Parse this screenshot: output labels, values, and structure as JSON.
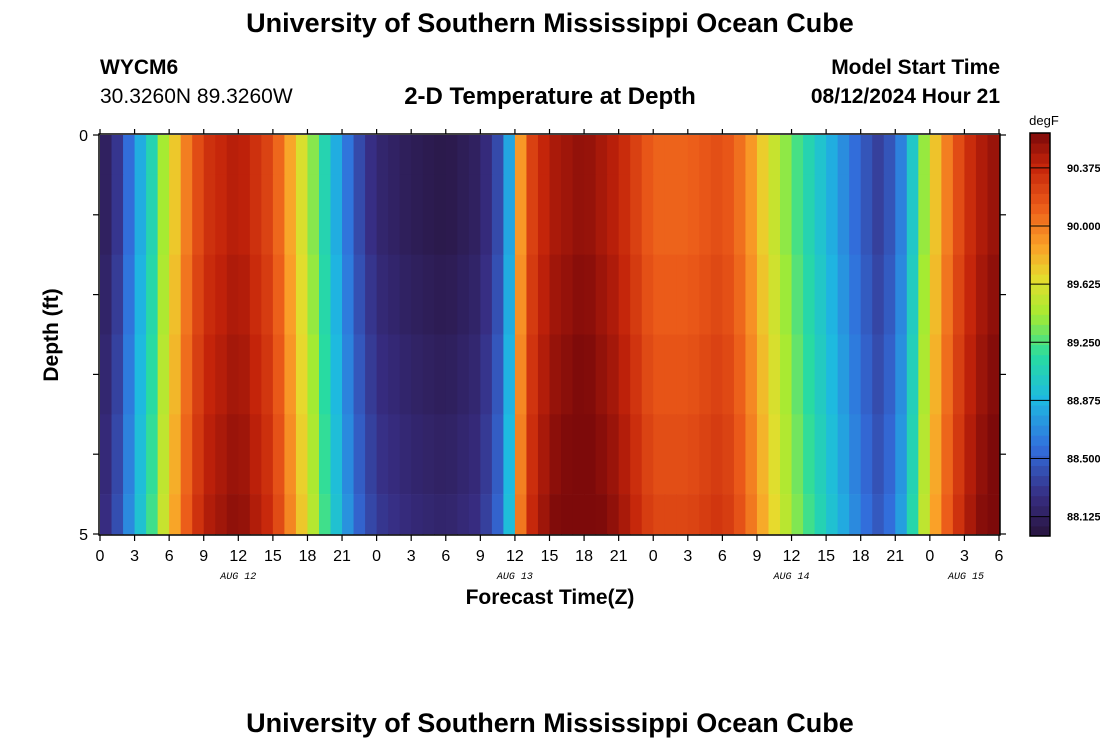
{
  "page": {
    "title": "University of Southern Mississippi Ocean Cube",
    "station_id": "WYCM6",
    "coordinates": "30.3260N  89.3260W",
    "subtitle": "2-D Temperature at Depth",
    "model_start_label": "Model Start Time",
    "model_start_value": "08/12/2024 Hour 21",
    "bottom_title": "University of Southern Mississippi Ocean Cube"
  },
  "chart_data": {
    "type": "heatmap",
    "xlabel": "Forecast Time(Z)",
    "ylabel": "Depth (ft)",
    "colorbar_unit": "degF",
    "x_tick_labels": [
      "0",
      "3",
      "6",
      "9",
      "12",
      "15",
      "18",
      "21",
      "0",
      "3",
      "6",
      "9",
      "12",
      "15",
      "18",
      "21",
      "0",
      "3",
      "6",
      "9",
      "12",
      "15",
      "18",
      "21",
      "0",
      "3",
      "6"
    ],
    "x_day_labels": [
      {
        "label": "AUG 12",
        "hour": 12
      },
      {
        "label": "AUG 13",
        "hour": 36
      },
      {
        "label": "AUG 14",
        "hour": 60
      },
      {
        "label": "AUG 15",
        "hour": 81
      }
    ],
    "x_range_hours": [
      0,
      78
    ],
    "y_tick_labels": [
      "0",
      "5"
    ],
    "y_range_ft": [
      0,
      5
    ],
    "colorbar_ticks": [
      "88.125",
      "88.500",
      "88.875",
      "89.250",
      "89.625",
      "90.000",
      "90.375"
    ],
    "colorbar_range": [
      88.0,
      90.6
    ],
    "depth_layers_ft": [
      0,
      0.5,
      1.5,
      2.5,
      3.5,
      4.5
    ],
    "time_profile": {
      "hours": [
        0,
        1.5,
        3,
        4.5,
        6,
        7.5,
        9,
        12,
        15,
        18,
        19.5,
        21,
        22.5,
        24,
        27,
        30,
        33,
        34.5,
        35.5,
        36,
        36.5,
        37.5,
        39,
        42,
        45,
        48,
        51,
        54,
        56,
        57,
        60,
        63,
        66,
        67.5,
        69,
        70,
        71,
        72,
        73,
        74,
        75,
        76.5,
        78
      ],
      "temperature_degF": [
        88.05,
        88.3,
        88.7,
        89.1,
        89.6,
        90.0,
        90.3,
        90.45,
        90.2,
        89.5,
        89.1,
        88.7,
        88.4,
        88.2,
        88.1,
        88.05,
        88.15,
        88.4,
        88.8,
        89.4,
        89.9,
        90.25,
        90.45,
        90.55,
        90.4,
        90.1,
        90.1,
        90.2,
        90.0,
        89.8,
        89.3,
        88.9,
        88.5,
        88.35,
        88.5,
        88.8,
        89.2,
        89.6,
        89.9,
        90.1,
        90.3,
        90.45,
        90.55
      ]
    },
    "depth_adjust_degF": [
      0.0,
      0.0,
      0.03,
      0.06,
      0.09,
      0.12
    ]
  }
}
